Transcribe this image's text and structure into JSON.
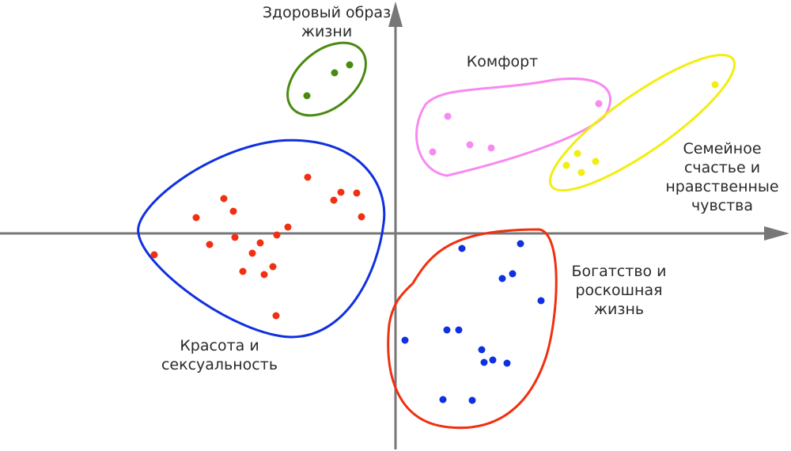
{
  "chart_data": {
    "type": "scatter",
    "xlim": [
      -500,
      500
    ],
    "ylim": [
      -275,
      295
    ],
    "series": [
      {
        "name": "Здоровый образ жизни",
        "color": "#4a8a10",
        "x": [
          -112,
          -77,
          -58
        ],
        "values": [
          174,
          203,
          213
        ]
      },
      {
        "name": "Комфорт",
        "color": "#f78af0",
        "x": [
          66,
          47,
          94,
          121,
          257
        ],
        "values": [
          148,
          103,
          112,
          108,
          164
        ]
      },
      {
        "name": "Семейное счастье и нравственные чувства",
        "color": "#f2ee10",
        "x": [
          404,
          230,
          216,
          235,
          253
        ],
        "values": [
          188,
          101,
          86,
          77,
          91
        ]
      },
      {
        "name": "Богатство и роскошная жизнь",
        "color": "#1030e0",
        "x": [
          158,
          84,
          148,
          135,
          184,
          65,
          80,
          12,
          109,
          112,
          123,
          141,
          60,
          97
        ],
        "values": [
          -13,
          -19,
          -51,
          -57,
          -85,
          -122,
          -122,
          -135,
          -147,
          -163,
          -160,
          -164,
          -210,
          -211
        ]
      },
      {
        "name": "Красота и сексуальность",
        "color": "#f03010",
        "x": [
          -111,
          -69,
          -49,
          -78,
          -43,
          -217,
          -205,
          -252,
          -136,
          -150,
          -203,
          -235,
          -171,
          -181,
          -305,
          -155,
          -193,
          -166,
          -151
        ],
        "values": [
          71,
          52,
          51,
          42,
          21,
          44,
          28,
          20,
          8,
          -2,
          -5,
          -14,
          -12,
          -25,
          -27,
          -42,
          -48,
          -52,
          -104
        ]
      }
    ]
  }
}
